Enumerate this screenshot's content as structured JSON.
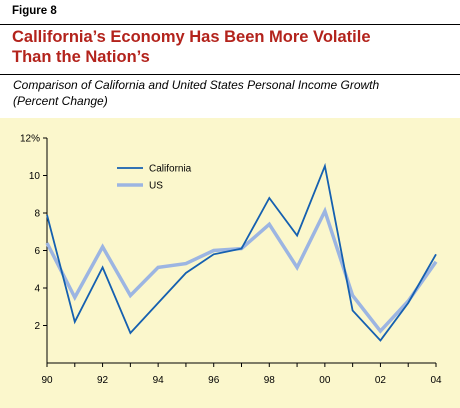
{
  "header": {
    "figure_label": "Figure 8",
    "title_line1": "Callifornia’s Economy Has Been More Volatile",
    "title_line2": "Than the Nation’s",
    "subtitle_line1": "Comparison of California and United States Personal Income Growth",
    "subtitle_line2": "(Percent Change)"
  },
  "colors": {
    "title": "#b3231c",
    "california": "#1560b0",
    "us": "#9cb5e2",
    "plot_background": "#fbf7cc"
  },
  "chart_data": {
    "type": "line",
    "x": [
      1990,
      1991,
      1992,
      1993,
      1994,
      1995,
      1996,
      1997,
      1998,
      1999,
      2000,
      2001,
      2002,
      2003,
      2004
    ],
    "x_tick_values": [
      1990,
      1992,
      1994,
      1996,
      1998,
      2000,
      2002,
      2004
    ],
    "x_tick_labels": [
      "90",
      "92",
      "94",
      "96",
      "98",
      "00",
      "02",
      "04"
    ],
    "y_tick_values": [
      2,
      4,
      6,
      8,
      10,
      12
    ],
    "y_tick_labels": [
      "2",
      "4",
      "6",
      "8",
      "10",
      "12%"
    ],
    "ylim": [
      0,
      12
    ],
    "xlim": [
      1990,
      2004
    ],
    "grid": false,
    "legend_position": "top-left",
    "series": [
      {
        "name": "California",
        "color": "#1560b0",
        "values": [
          7.9,
          2.2,
          5.1,
          1.6,
          3.2,
          4.8,
          5.8,
          6.1,
          8.8,
          6.8,
          10.5,
          2.8,
          1.2,
          3.2,
          5.8
        ]
      },
      {
        "name": "US",
        "color": "#9cb5e2",
        "values": [
          6.4,
          3.5,
          6.2,
          3.6,
          5.1,
          5.3,
          6.0,
          6.1,
          7.4,
          5.1,
          8.1,
          3.6,
          1.7,
          3.3,
          5.4
        ]
      }
    ]
  }
}
